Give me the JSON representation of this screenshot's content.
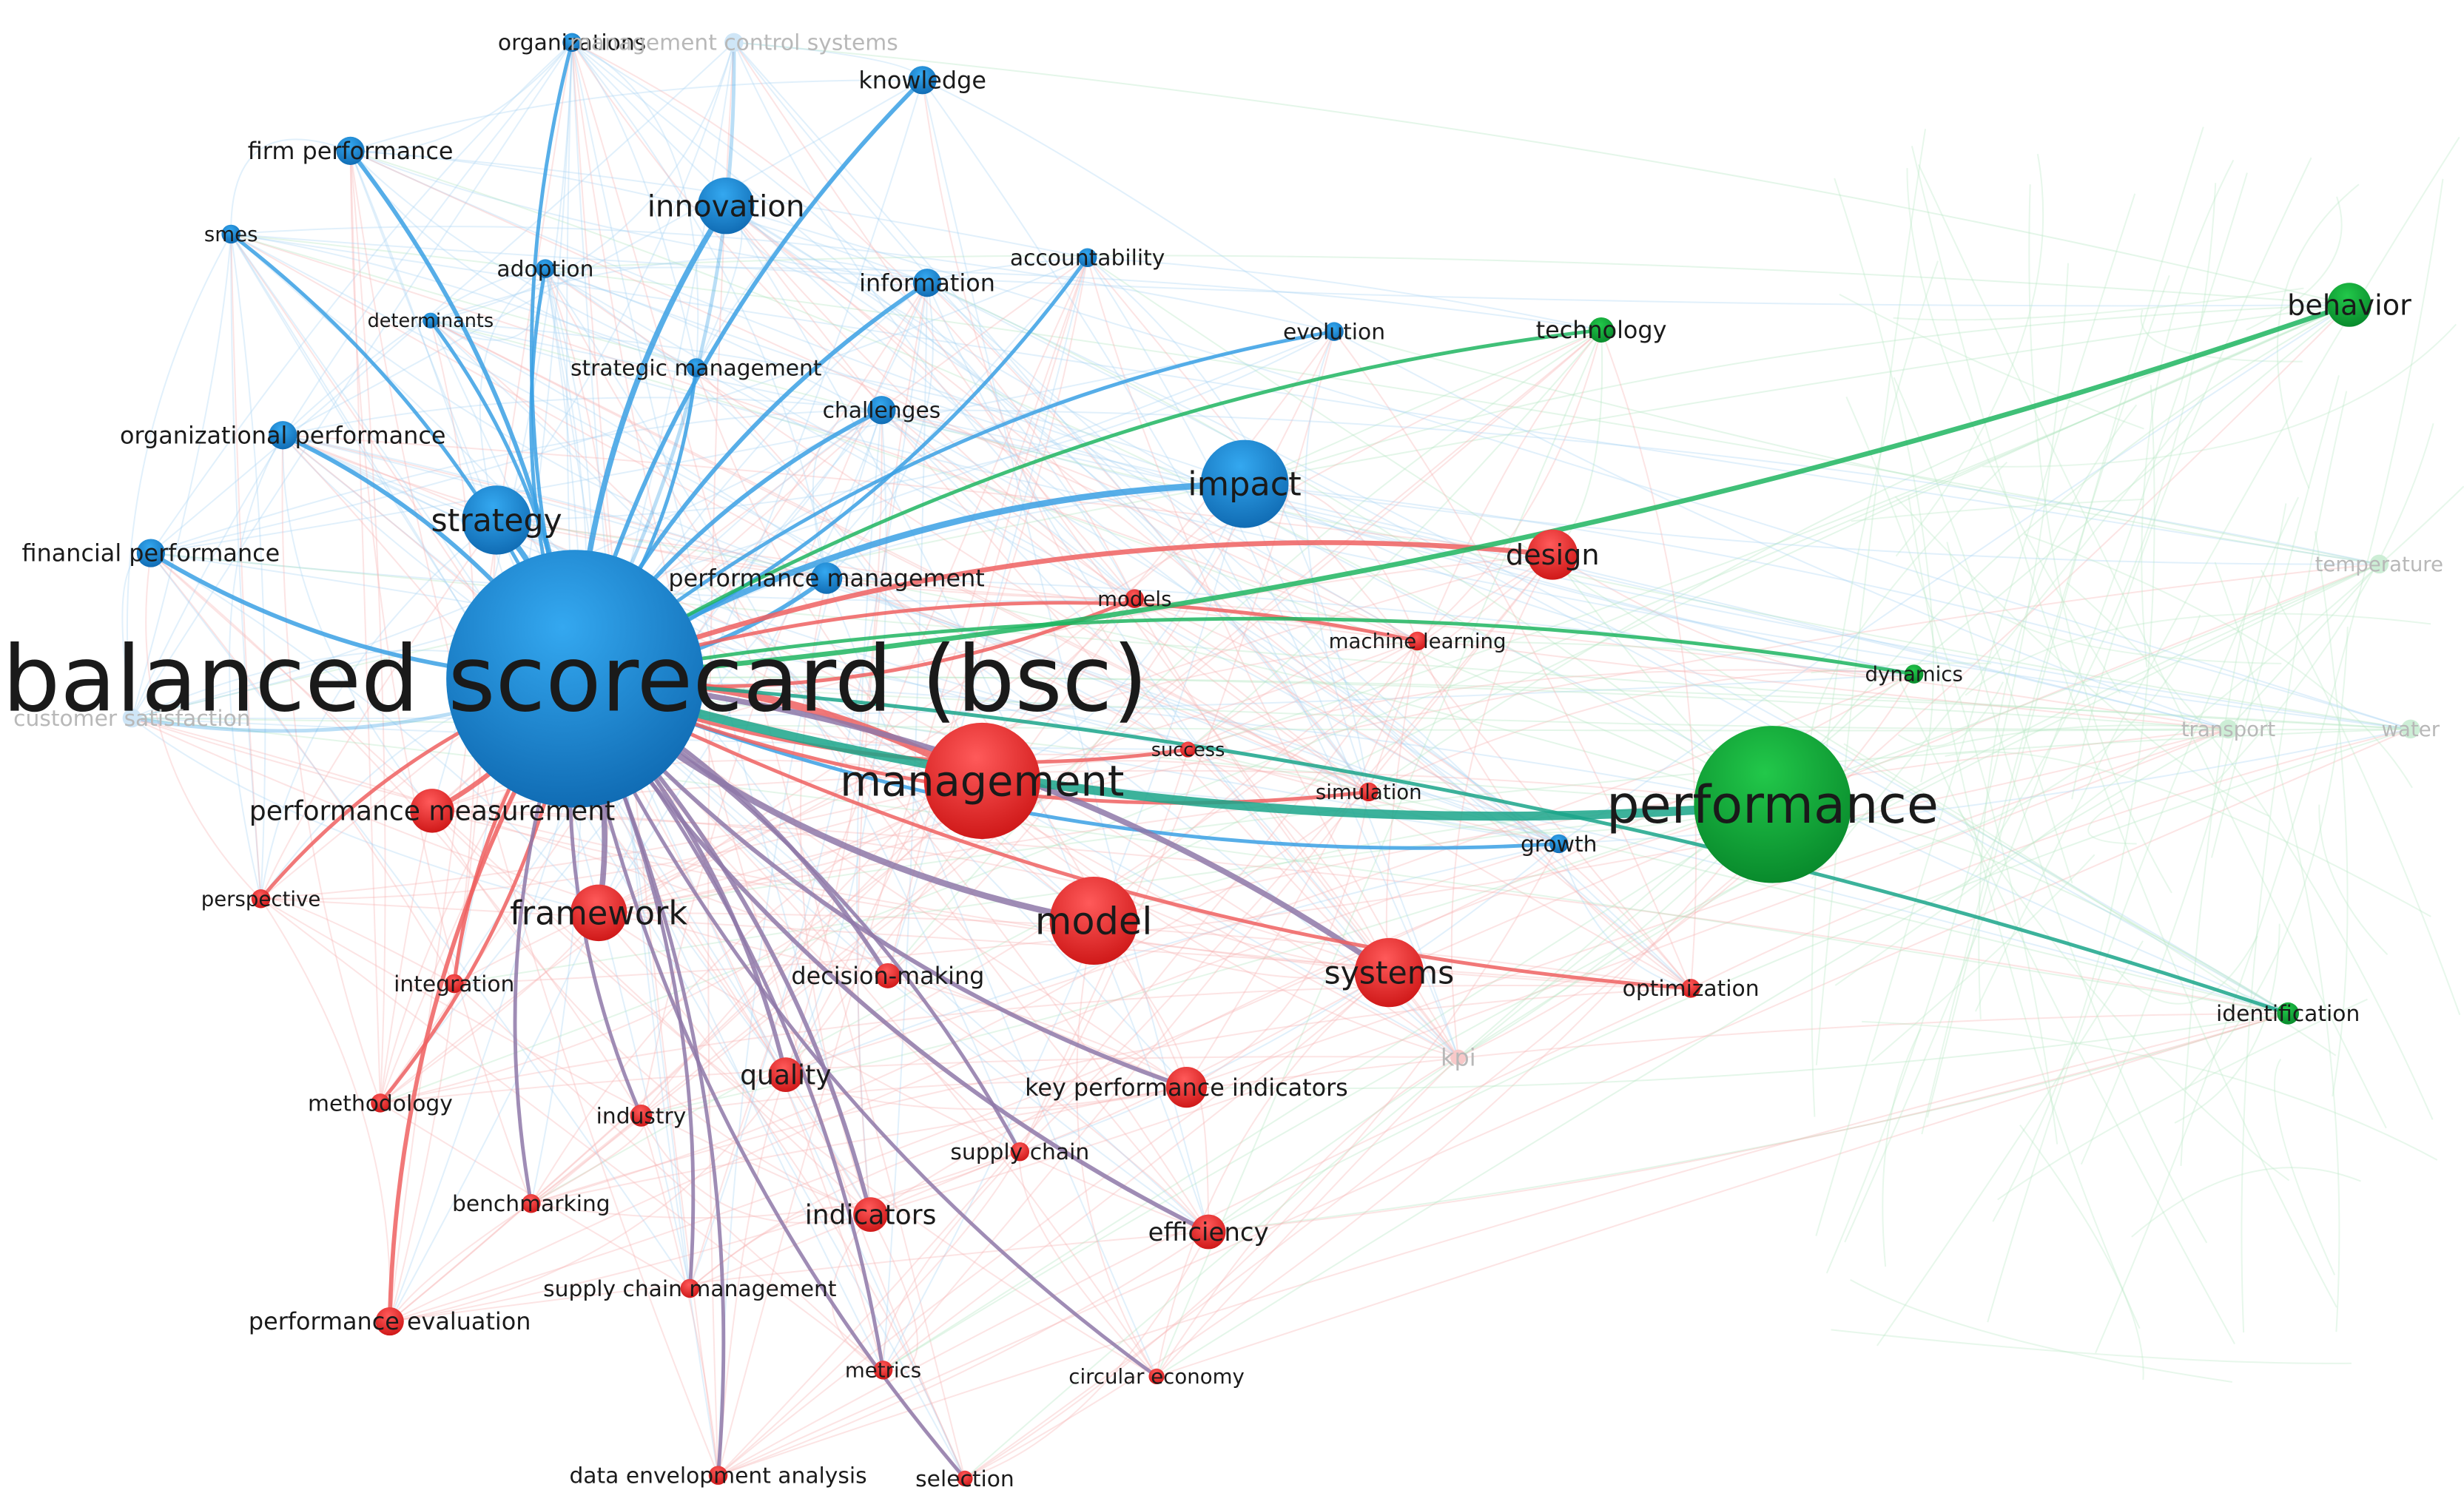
{
  "colors": {
    "blue": "#1a8fdf",
    "blue_dark": "#0d6cb8",
    "red": "#ee2a2a",
    "red_dark": "#c81818",
    "green": "#12b23a",
    "green_dark": "#0a8f2a",
    "blue_edge": "#3aa0e4",
    "red_edge": "#ee6060",
    "green_edge": "#1fb560",
    "teal_edge": "#1aa58a",
    "mauve_edge": "#8e78a8"
  },
  "network": {
    "hub_label": "balanced scorecard (bsc)",
    "nodes": [
      {
        "id": "bsc",
        "label": "balanced scorecard (bsc)",
        "cluster": "blue",
        "weight": 10,
        "hub": true
      },
      {
        "id": "organizations",
        "label": "organizations",
        "cluster": "blue",
        "weight": 1
      },
      {
        "id": "mcs",
        "label": "management control systems",
        "cluster": "blue",
        "weight": 1,
        "faint": true
      },
      {
        "id": "knowledge",
        "label": "knowledge",
        "cluster": "blue",
        "weight": 2
      },
      {
        "id": "firm_performance",
        "label": "firm performance",
        "cluster": "blue",
        "weight": 2
      },
      {
        "id": "innovation",
        "label": "innovation",
        "cluster": "blue",
        "weight": 4
      },
      {
        "id": "smes",
        "label": "smes",
        "cluster": "blue",
        "weight": 1
      },
      {
        "id": "adoption",
        "label": "adoption",
        "cluster": "blue",
        "weight": 1
      },
      {
        "id": "accountability",
        "label": "accountability",
        "cluster": "blue",
        "weight": 1
      },
      {
        "id": "information",
        "label": "information",
        "cluster": "blue",
        "weight": 2
      },
      {
        "id": "determinants",
        "label": "determinants",
        "cluster": "blue",
        "weight": 1
      },
      {
        "id": "evolution",
        "label": "evolution",
        "cluster": "blue",
        "weight": 1
      },
      {
        "id": "strategic_management",
        "label": "strategic management",
        "cluster": "blue",
        "weight": 1
      },
      {
        "id": "challenges",
        "label": "challenges",
        "cluster": "blue",
        "weight": 2
      },
      {
        "id": "organizational_performance",
        "label": "organizational performance",
        "cluster": "blue",
        "weight": 2
      },
      {
        "id": "impact",
        "label": "impact",
        "cluster": "blue",
        "weight": 5
      },
      {
        "id": "strategy",
        "label": "strategy",
        "cluster": "blue",
        "weight": 4
      },
      {
        "id": "financial_performance",
        "label": "financial performance",
        "cluster": "blue",
        "weight": 2
      },
      {
        "id": "performance_management",
        "label": "performance management",
        "cluster": "blue",
        "weight": 2
      },
      {
        "id": "customer_satisfaction",
        "label": "customer satisfaction",
        "cluster": "blue",
        "weight": 1,
        "faint": true
      },
      {
        "id": "growth",
        "label": "growth",
        "cluster": "blue",
        "weight": 1
      },
      {
        "id": "design",
        "label": "design",
        "cluster": "red",
        "weight": 3
      },
      {
        "id": "models",
        "label": "models",
        "cluster": "red",
        "weight": 1
      },
      {
        "id": "machine_learning",
        "label": "machine learning",
        "cluster": "red",
        "weight": 1
      },
      {
        "id": "success",
        "label": "success",
        "cluster": "red",
        "weight": 1
      },
      {
        "id": "management",
        "label": "management",
        "cluster": "red",
        "weight": 7
      },
      {
        "id": "simulation",
        "label": "simulation",
        "cluster": "red",
        "weight": 1
      },
      {
        "id": "performance_measurement",
        "label": "performance measurement",
        "cluster": "red",
        "weight": 3
      },
      {
        "id": "perspective",
        "label": "perspective",
        "cluster": "red",
        "weight": 1
      },
      {
        "id": "framework",
        "label": "framework",
        "cluster": "red",
        "weight": 4
      },
      {
        "id": "model",
        "label": "model",
        "cluster": "red",
        "weight": 5
      },
      {
        "id": "systems",
        "label": "systems",
        "cluster": "red",
        "weight": 4
      },
      {
        "id": "integration",
        "label": "integration",
        "cluster": "red",
        "weight": 1
      },
      {
        "id": "decision_making",
        "label": "decision-making",
        "cluster": "red",
        "weight": 2
      },
      {
        "id": "optimization",
        "label": "optimization",
        "cluster": "red",
        "weight": 1
      },
      {
        "id": "kpi",
        "label": "kpi",
        "cluster": "red",
        "weight": 1,
        "faint": true
      },
      {
        "id": "quality",
        "label": "quality",
        "cluster": "red",
        "weight": 2
      },
      {
        "id": "key_performance_indicators",
        "label": "key performance indicators",
        "cluster": "red",
        "weight": 2
      },
      {
        "id": "methodology",
        "label": "methodology",
        "cluster": "red",
        "weight": 1
      },
      {
        "id": "industry",
        "label": "industry",
        "cluster": "red",
        "weight": 1
      },
      {
        "id": "supply_chain",
        "label": "supply chain",
        "cluster": "red",
        "weight": 1
      },
      {
        "id": "benchmarking",
        "label": "benchmarking",
        "cluster": "red",
        "weight": 1
      },
      {
        "id": "indicators",
        "label": "indicators",
        "cluster": "red",
        "weight": 2
      },
      {
        "id": "efficiency",
        "label": "efficiency",
        "cluster": "red",
        "weight": 2
      },
      {
        "id": "supply_chain_management",
        "label": "supply chain management",
        "cluster": "red",
        "weight": 1
      },
      {
        "id": "performance_evaluation",
        "label": "performance evaluation",
        "cluster": "red",
        "weight": 2
      },
      {
        "id": "metrics",
        "label": "metrics",
        "cluster": "red",
        "weight": 1
      },
      {
        "id": "circular_economy",
        "label": "circular economy",
        "cluster": "red",
        "weight": 1
      },
      {
        "id": "dea",
        "label": "data envelopment analysis",
        "cluster": "red",
        "weight": 1
      },
      {
        "id": "selection",
        "label": "selection",
        "cluster": "red",
        "weight": 1
      },
      {
        "id": "technology",
        "label": "technology",
        "cluster": "green",
        "weight": 1
      },
      {
        "id": "behavior",
        "label": "behavior",
        "cluster": "green",
        "weight": 3
      },
      {
        "id": "temperature",
        "label": "temperature",
        "cluster": "green",
        "weight": 1,
        "faint": true
      },
      {
        "id": "dynamics",
        "label": "dynamics",
        "cluster": "green",
        "weight": 1
      },
      {
        "id": "transport",
        "label": "transport",
        "cluster": "green",
        "weight": 1,
        "faint": true
      },
      {
        "id": "water",
        "label": "water",
        "cluster": "green",
        "weight": 1,
        "faint": true
      },
      {
        "id": "performance",
        "label": "performance",
        "cluster": "green",
        "weight": 9
      },
      {
        "id": "identification",
        "label": "identification",
        "cluster": "green",
        "weight": 1
      }
    ],
    "edges": [
      [
        "bsc",
        "organizations"
      ],
      [
        "bsc",
        "mcs"
      ],
      [
        "bsc",
        "knowledge"
      ],
      [
        "bsc",
        "firm_performance"
      ],
      [
        "bsc",
        "innovation"
      ],
      [
        "bsc",
        "smes"
      ],
      [
        "bsc",
        "adoption"
      ],
      [
        "bsc",
        "accountability"
      ],
      [
        "bsc",
        "information"
      ],
      [
        "bsc",
        "determinants"
      ],
      [
        "bsc",
        "evolution"
      ],
      [
        "bsc",
        "strategic_management"
      ],
      [
        "bsc",
        "challenges"
      ],
      [
        "bsc",
        "organizational_performance"
      ],
      [
        "bsc",
        "impact"
      ],
      [
        "bsc",
        "strategy"
      ],
      [
        "bsc",
        "financial_performance"
      ],
      [
        "bsc",
        "performance_management"
      ],
      [
        "bsc",
        "customer_satisfaction"
      ],
      [
        "bsc",
        "growth"
      ],
      [
        "bsc",
        "design"
      ],
      [
        "bsc",
        "models"
      ],
      [
        "bsc",
        "machine_learning"
      ],
      [
        "bsc",
        "success"
      ],
      [
        "bsc",
        "management"
      ],
      [
        "bsc",
        "simulation"
      ],
      [
        "bsc",
        "performance_measurement"
      ],
      [
        "bsc",
        "perspective"
      ],
      [
        "bsc",
        "framework"
      ],
      [
        "bsc",
        "model"
      ],
      [
        "bsc",
        "systems"
      ],
      [
        "bsc",
        "integration"
      ],
      [
        "bsc",
        "decision_making"
      ],
      [
        "bsc",
        "optimization"
      ],
      [
        "bsc",
        "quality"
      ],
      [
        "bsc",
        "key_performance_indicators"
      ],
      [
        "bsc",
        "methodology"
      ],
      [
        "bsc",
        "industry"
      ],
      [
        "bsc",
        "supply_chain"
      ],
      [
        "bsc",
        "benchmarking"
      ],
      [
        "bsc",
        "indicators"
      ],
      [
        "bsc",
        "efficiency"
      ],
      [
        "bsc",
        "supply_chain_management"
      ],
      [
        "bsc",
        "performance_evaluation"
      ],
      [
        "bsc",
        "metrics"
      ],
      [
        "bsc",
        "circular_economy"
      ],
      [
        "bsc",
        "dea"
      ],
      [
        "bsc",
        "selection"
      ],
      [
        "bsc",
        "technology"
      ],
      [
        "bsc",
        "behavior"
      ],
      [
        "bsc",
        "dynamics"
      ],
      [
        "bsc",
        "performance"
      ],
      [
        "bsc",
        "identification"
      ]
    ]
  }
}
